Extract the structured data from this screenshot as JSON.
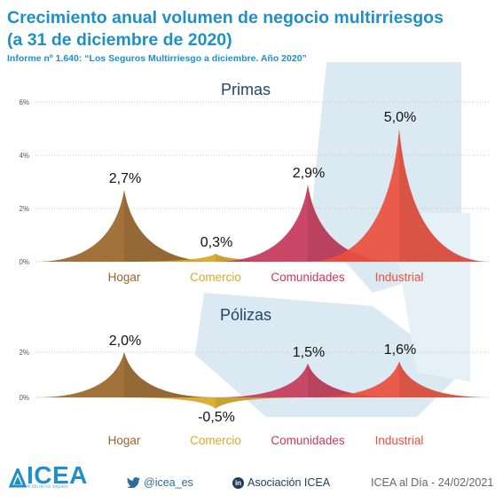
{
  "header": {
    "title_line1": "Crecimiento anual volumen de negocio multirriesgos",
    "title_line2": "(a 31 de diciembre de 2020)",
    "subtitle": "Informe nº 1.640: “Los Seguros Multirriesgo a diciembre. Año 2020”"
  },
  "colors": {
    "title": "#1f8fc8",
    "watermark": "#dbe9f3",
    "Hogar": "#996629",
    "Comercio": "#d7a726",
    "Comunidades": "#c6385a",
    "Industrial": "#ea4e3c"
  },
  "chart_data": [
    {
      "type": "area",
      "title": "Primas",
      "categories": [
        "Hogar",
        "Comercio",
        "Comunidades",
        "Industrial"
      ],
      "values": [
        2.7,
        0.3,
        2.9,
        5.0
      ],
      "value_labels": [
        "2,7%",
        "0,3%",
        "2,9%",
        "5,0%"
      ],
      "y_ticks": [
        "6%",
        "4%",
        "2%",
        "0%"
      ],
      "ylim": [
        0,
        6
      ],
      "grid": true
    },
    {
      "type": "area",
      "title": "Pólizas",
      "categories": [
        "Hogar",
        "Comercio",
        "Comunidades",
        "Industrial"
      ],
      "values": [
        2.0,
        -0.5,
        1.5,
        1.6
      ],
      "value_labels": [
        "2,0%",
        "-0,5%",
        "1,5%",
        "1,6%"
      ],
      "y_ticks": [
        "2%",
        "0%"
      ],
      "ylim": [
        -0.5,
        2
      ],
      "grid": true
    }
  ],
  "footer": {
    "logo_text": "ICEA",
    "logo_tagline": "Al día de los seguros",
    "twitter": "@icea_es",
    "linkedin_badge": "in",
    "linkedin": "Asociación ICEA",
    "date": "ICEA al Día - 24/02/2021"
  }
}
